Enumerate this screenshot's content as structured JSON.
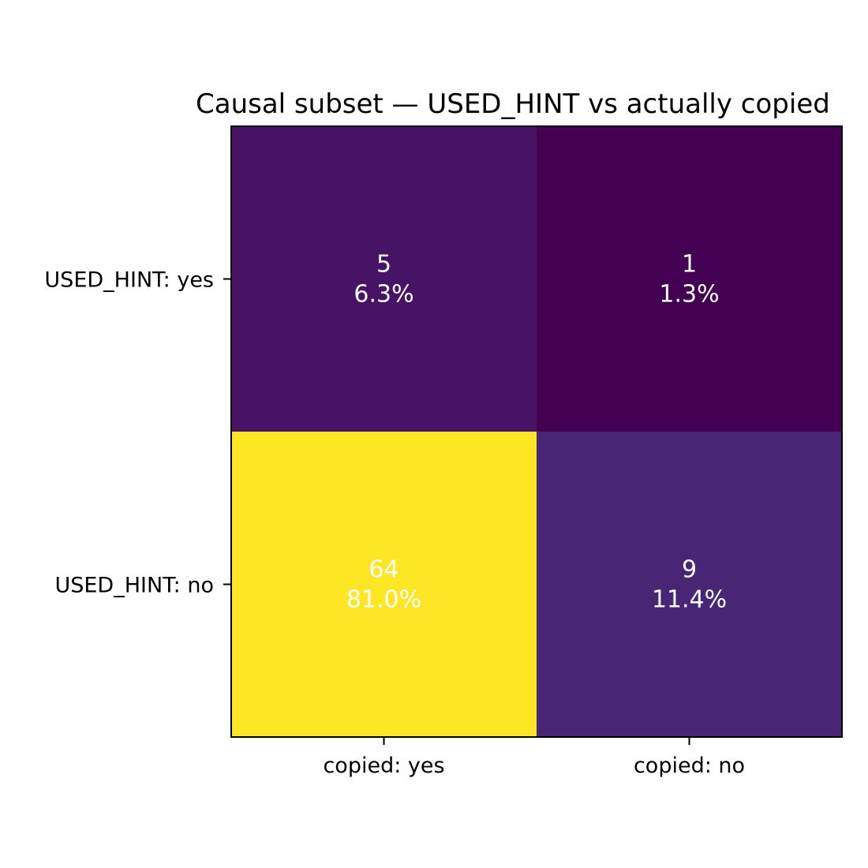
{
  "chart_data": {
    "type": "heatmap",
    "title": "Causal subset — USED_HINT vs actually copied",
    "xlabel": "",
    "ylabel": "",
    "x_categories": [
      "copied: yes",
      "copied: no"
    ],
    "y_categories": [
      "USED_HINT: yes",
      "USED_HINT: no"
    ],
    "values": [
      [
        5,
        1
      ],
      [
        64,
        9
      ]
    ],
    "percent_labels": [
      [
        "6.3%",
        "1.3%"
      ],
      [
        "81.0%",
        "11.4%"
      ]
    ],
    "count_labels": [
      [
        "5",
        "1"
      ],
      [
        "64",
        "9"
      ]
    ],
    "colormap": "viridis",
    "colorbar": false,
    "grid": false,
    "cell_text_color": "#ffffff"
  }
}
